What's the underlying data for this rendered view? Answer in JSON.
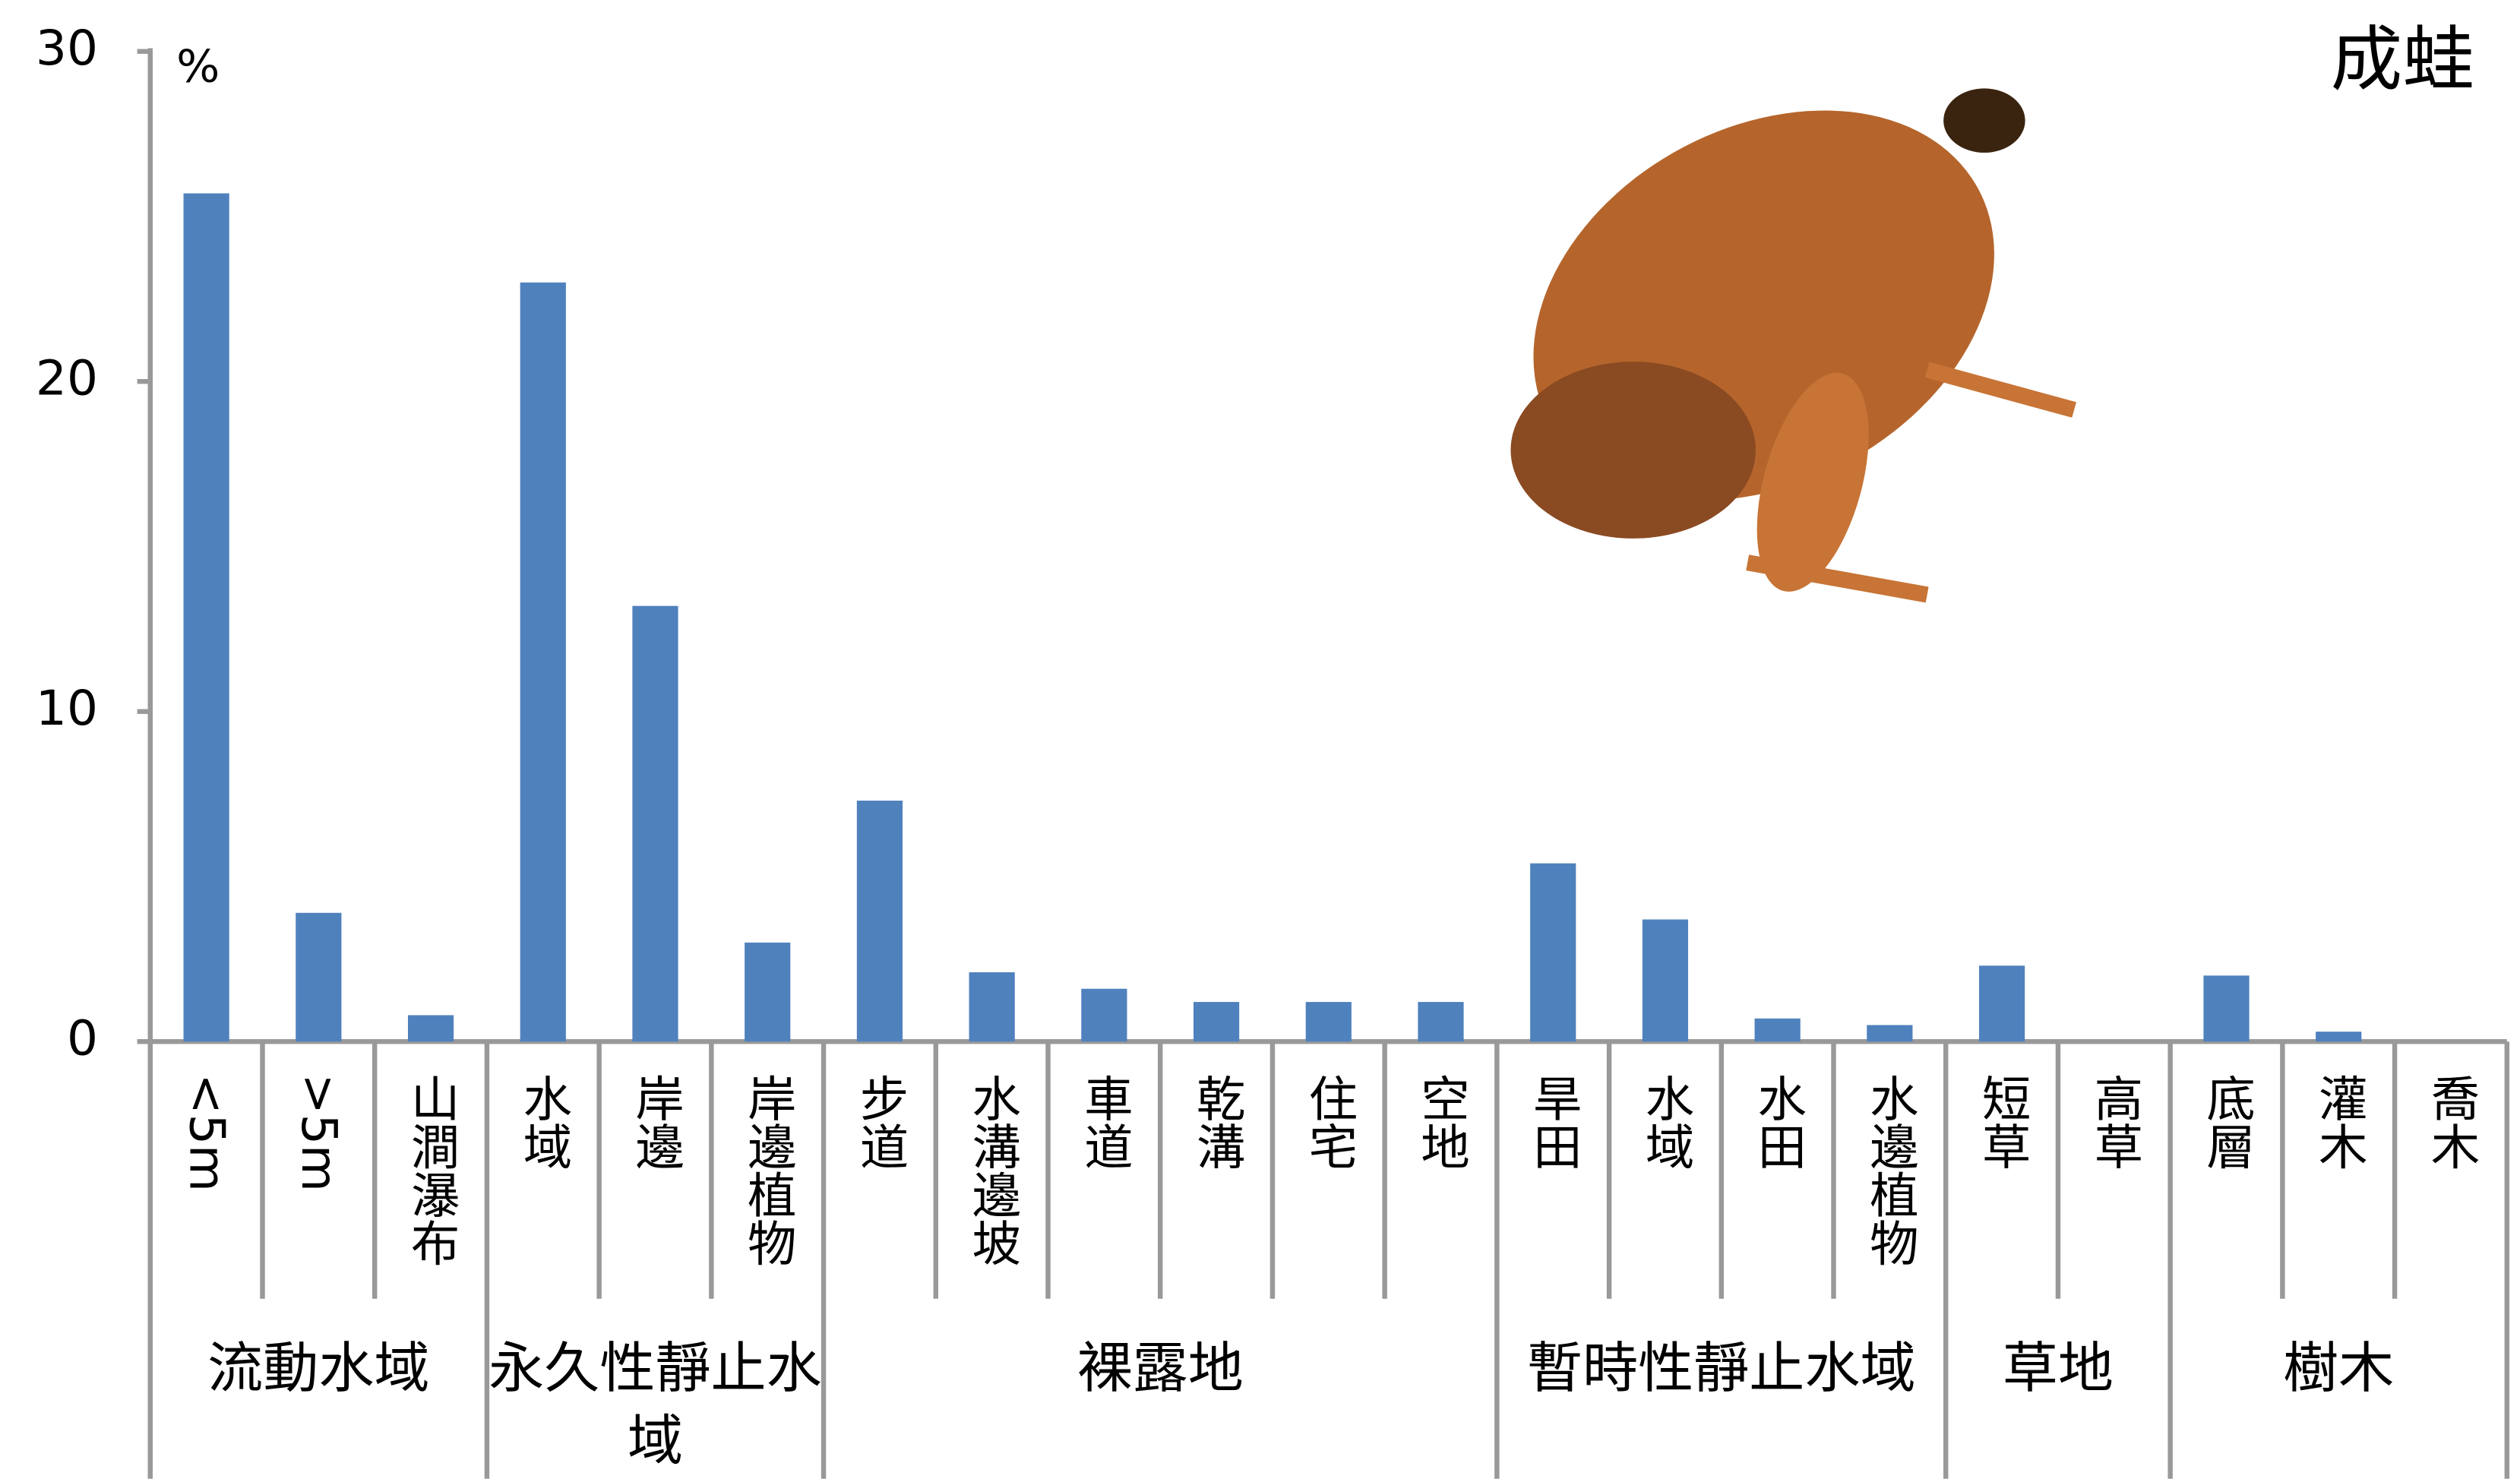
{
  "chart_data": {
    "type": "bar",
    "title": "成蛙",
    "y_unit": "%",
    "color": "#4f81bd",
    "ylim": [
      0,
      30
    ],
    "yticks": [
      0,
      10,
      20,
      30
    ],
    "grid": false,
    "groups": [
      {
        "name": "流動水域",
        "categories": [
          "<5m",
          ">5m",
          "山澗瀑布"
        ],
        "values": [
          25.7,
          3.9,
          0.8
        ]
      },
      {
        "name": "永久性靜止水域",
        "categories": [
          "水域",
          "岸邊",
          "岸邊植物"
        ],
        "values": [
          23.0,
          13.2,
          3.0
        ]
      },
      {
        "name": "裸露地",
        "categories": [
          "步道",
          "水溝邊坡",
          "車道",
          "乾溝",
          "住宅",
          "空地"
        ],
        "values": [
          7.3,
          2.1,
          1.6,
          1.2,
          1.2,
          1.2
        ]
      },
      {
        "name": "暫時性靜止水域",
        "categories": [
          "旱田",
          "水域",
          "水田",
          "水邊植物"
        ],
        "values": [
          5.4,
          3.7,
          0.7,
          0.5
        ]
      },
      {
        "name": "草地",
        "categories": [
          "短草",
          "高草"
        ],
        "values": [
          2.3,
          0
        ]
      },
      {
        "name": "樹木",
        "categories": [
          "底層",
          "灌木",
          "喬木"
        ],
        "values": [
          2.0,
          0.3,
          0
        ]
      }
    ]
  }
}
